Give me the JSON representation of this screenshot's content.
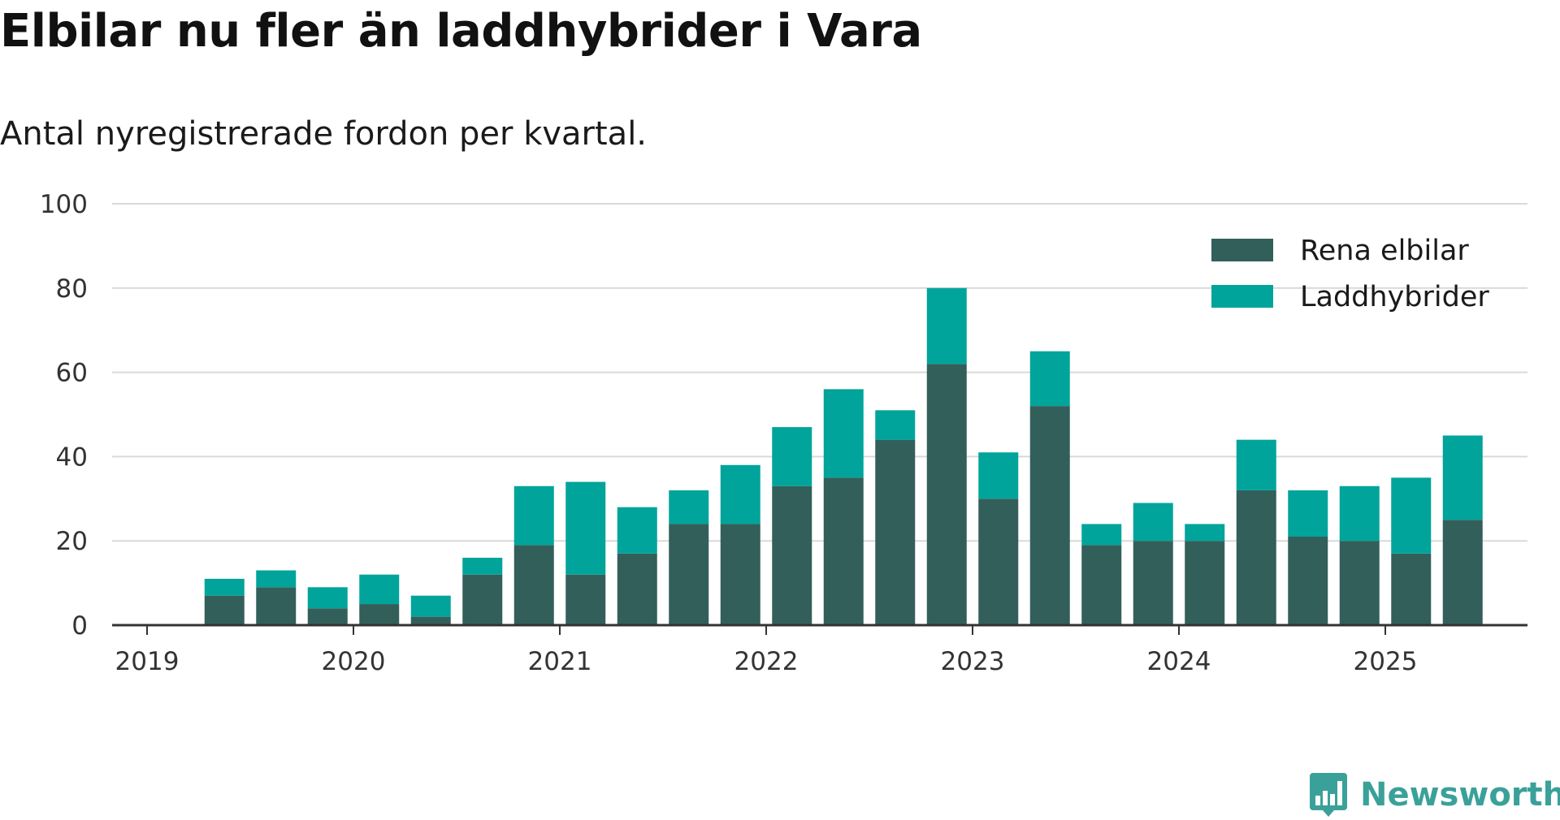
{
  "title": "Elbilar nu fler än laddhybrider i Vara",
  "subtitle": "Antal nyregistrerade fordon per kvartal.",
  "brand": {
    "name": "Newsworthy",
    "color": "#3aa19a",
    "icon": "bar-chart-bubble-icon"
  },
  "colors": {
    "grid": "#d9d9d9",
    "axis": "#333333",
    "tick_text": "#333333"
  },
  "chart_data": {
    "type": "bar",
    "stacked": true,
    "ylim": [
      0,
      100
    ],
    "yticks": [
      0,
      20,
      40,
      60,
      80,
      100
    ],
    "xticks": [
      "2019",
      "2020",
      "2021",
      "2022",
      "2023",
      "2024",
      "2025"
    ],
    "categories": [
      "2019 Q2",
      "2019 Q3",
      "2019 Q4",
      "2020 Q1",
      "2020 Q2",
      "2020 Q3",
      "2020 Q4",
      "2021 Q1",
      "2021 Q2",
      "2021 Q3",
      "2021 Q4",
      "2022 Q1",
      "2022 Q2",
      "2022 Q3",
      "2022 Q4",
      "2023 Q1",
      "2023 Q2",
      "2023 Q3",
      "2023 Q4",
      "2024 Q1",
      "2024 Q2",
      "2024 Q3",
      "2024 Q4",
      "2025 Q1",
      "2025 Q2"
    ],
    "series": [
      {
        "name": "Rena elbilar",
        "color": "#335f5a",
        "values": [
          7,
          9,
          4,
          5,
          2,
          12,
          19,
          12,
          17,
          24,
          24,
          33,
          35,
          44,
          62,
          30,
          52,
          19,
          20,
          20,
          32,
          21,
          20,
          17,
          25
        ]
      },
      {
        "name": "Laddhybrider",
        "color": "#00a49a",
        "values": [
          4,
          4,
          5,
          7,
          5,
          4,
          14,
          22,
          11,
          8,
          14,
          14,
          21,
          7,
          18,
          11,
          13,
          5,
          9,
          4,
          12,
          11,
          13,
          18,
          20
        ]
      }
    ],
    "legend": "top-right",
    "grid": true
  }
}
